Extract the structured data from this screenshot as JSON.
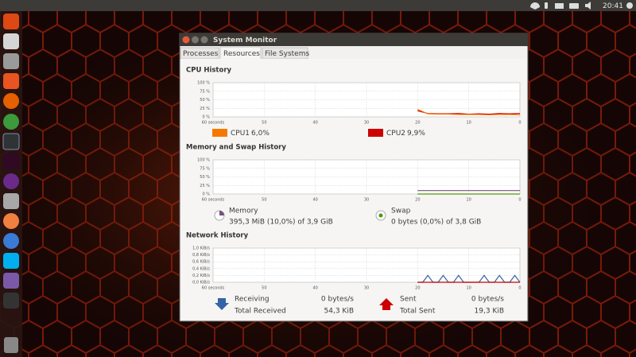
{
  "top_bar": {
    "time": "20:41"
  },
  "window": {
    "title": "System Monitor",
    "tabs": [
      "Processes",
      "Resources",
      "File Systems"
    ]
  },
  "cpu_history": {
    "title": "CPU History",
    "xlim": [
      60,
      0
    ],
    "xticks": [
      {
        "value": 60,
        "label": "60 seconds"
      },
      50,
      40,
      30,
      20,
      10,
      0
    ],
    "ylim": [
      0,
      100
    ],
    "yticks": [
      {
        "value": 100,
        "label": "100 %"
      },
      {
        "value": 75,
        "label": "75 %"
      },
      {
        "value": 50,
        "label": "50 %"
      },
      {
        "value": 25,
        "label": "25 %"
      },
      {
        "value": 0,
        "label": "0 %"
      }
    ],
    "x": [
      20,
      18,
      16,
      14,
      12,
      10,
      8,
      6,
      4,
      2,
      0
    ],
    "series": [
      {
        "name": "CPU2",
        "color": "#cc0000",
        "usage": "9,9%",
        "values": [
          18,
          10,
          9,
          9,
          10,
          8,
          9,
          8,
          10,
          9,
          10
        ]
      },
      {
        "name": "CPU1",
        "color": "#f57900",
        "usage": "6,0%",
        "values": [
          22,
          9,
          8,
          8,
          7,
          7,
          7,
          6,
          7,
          7,
          6
        ]
      }
    ]
  },
  "memory_history": {
    "title": "Memory and Swap History",
    "xlim": [
      60,
      0
    ],
    "xticks": [
      {
        "value": 60,
        "label": "60 seconds"
      },
      50,
      40,
      30,
      20,
      10,
      0
    ],
    "ylim": [
      0,
      100
    ],
    "yticks": [
      {
        "value": 100,
        "label": "100 %"
      },
      {
        "value": 75,
        "label": "75 %"
      },
      {
        "value": 50,
        "label": "50 %"
      },
      {
        "value": 25,
        "label": "25 %"
      },
      {
        "value": 0,
        "label": "0 %"
      }
    ],
    "x": [
      20,
      10,
      0
    ],
    "series": [
      {
        "name": "Memory",
        "color": "#75507b",
        "usage": "395,3 MiB (10,0%) of 3,9 GiB",
        "values": [
          10,
          10,
          10
        ]
      },
      {
        "name": "Swap",
        "color": "#4e9a06",
        "usage": "0 bytes (0,0%) of 3,8 GiB",
        "values": [
          0,
          0,
          0
        ]
      }
    ]
  },
  "network_history": {
    "title": "Network History",
    "xlim": [
      60,
      0
    ],
    "xticks": [
      {
        "value": 60,
        "label": "60 seconds"
      },
      50,
      40,
      30,
      20,
      10,
      0
    ],
    "ylim": [
      0,
      1.0
    ],
    "yticks": [
      {
        "value": 1.0,
        "label": "1,0 KiB/s"
      },
      {
        "value": 0.8,
        "label": "0,8 KiB/s"
      },
      {
        "value": 0.6,
        "label": "0,6 KiB/s"
      },
      {
        "value": 0.4,
        "label": "0,4 KiB/s"
      },
      {
        "value": 0.2,
        "label": "0,2 KiB/s"
      },
      {
        "value": 0.0,
        "label": "0,0 KiB/s"
      }
    ],
    "x": [
      20,
      19,
      18,
      17,
      16,
      15,
      14,
      13,
      12,
      11,
      10,
      9,
      8,
      7,
      6,
      5,
      4,
      3,
      2,
      1,
      0
    ],
    "series": [
      {
        "name": "Receiving",
        "color": "#3465a4",
        "rate": "0 bytes/s",
        "total_label": "Total Received",
        "total": "54,3 KiB",
        "values": [
          0,
          0,
          0.2,
          0,
          0,
          0.2,
          0,
          0,
          0.2,
          0,
          0,
          0,
          0,
          0.2,
          0,
          0,
          0.2,
          0,
          0,
          0.2,
          0
        ]
      },
      {
        "name": "Sent",
        "color": "#cc0000",
        "rate": "0 bytes/s",
        "total_label": "Total Sent",
        "total": "19,3 KiB",
        "values": [
          0,
          0,
          0,
          0,
          0,
          0,
          0,
          0,
          0,
          0,
          0,
          0,
          0,
          0,
          0,
          0,
          0,
          0,
          0,
          0,
          0
        ]
      }
    ]
  }
}
